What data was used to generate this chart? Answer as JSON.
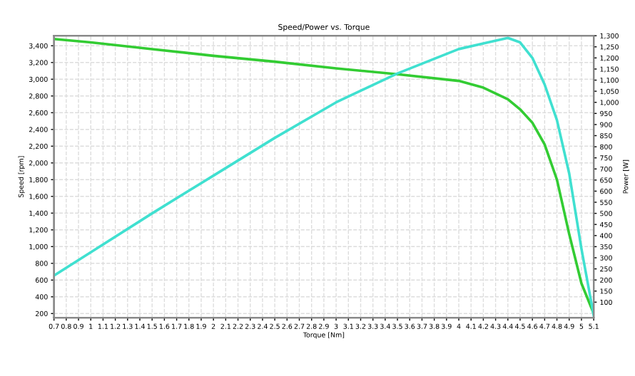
{
  "chart_data": {
    "type": "line",
    "title": "Speed/Power vs. Torque",
    "xlabel": "Torque [Nm]",
    "ylabel": "Speed [rpm]",
    "y2label": "Power [W]",
    "grid": true,
    "legend": false,
    "marker": "none",
    "line_style": "solid",
    "xlim": [
      0.7,
      5.1
    ],
    "xticks": [
      0.7,
      0.8,
      0.9,
      1,
      1.1,
      1.2,
      1.3,
      1.4,
      1.5,
      1.6,
      1.7,
      1.8,
      1.9,
      2,
      2.1,
      2.2,
      2.3,
      2.4,
      2.5,
      2.6,
      2.7,
      2.8,
      2.9,
      3,
      3.1,
      3.2,
      3.3,
      3.4,
      3.5,
      3.6,
      3.7,
      3.8,
      3.9,
      4,
      4.1,
      4.2,
      4.3,
      4.4,
      4.5,
      4.6,
      4.7,
      4.8,
      4.9,
      5,
      5.1
    ],
    "ylim": [
      150,
      3520
    ],
    "yticks": [
      200,
      400,
      600,
      800,
      {
        "value": 1000,
        "label": "1,000"
      },
      {
        "value": 1200,
        "label": "1,200"
      },
      {
        "value": 1400,
        "label": "1,400"
      },
      {
        "value": 1600,
        "label": "1,600"
      },
      {
        "value": 1800,
        "label": "1,800"
      },
      {
        "value": 2000,
        "label": "2,000"
      },
      {
        "value": 2200,
        "label": "2,200"
      },
      {
        "value": 2400,
        "label": "2,400"
      },
      {
        "value": 2600,
        "label": "2,600"
      },
      {
        "value": 2800,
        "label": "2,800"
      },
      {
        "value": 3000,
        "label": "3,000"
      },
      {
        "value": 3200,
        "label": "3,200"
      },
      {
        "value": 3400,
        "label": "3,400"
      }
    ],
    "y2lim": [
      30,
      1300
    ],
    "y2ticks": [
      100,
      150,
      200,
      250,
      300,
      350,
      400,
      450,
      500,
      550,
      600,
      650,
      700,
      750,
      800,
      850,
      900,
      950,
      {
        "value": 1000,
        "label": "1,000"
      },
      {
        "value": 1050,
        "label": "1,050"
      },
      {
        "value": 1100,
        "label": "1,100"
      },
      {
        "value": 1150,
        "label": "1,150"
      },
      {
        "value": 1200,
        "label": "1,200"
      },
      {
        "value": 1250,
        "label": "1,250"
      },
      {
        "value": 1300,
        "label": "1,300"
      }
    ],
    "x": [
      0.7,
      1,
      1.5,
      2,
      2.5,
      3,
      3.5,
      4,
      4.2,
      4.4,
      4.5,
      4.6,
      4.7,
      4.8,
      4.9,
      5,
      5.1
    ],
    "series": [
      {
        "color": "#33cc33",
        "values": [
          3480,
          3440,
          3360,
          3280,
          3210,
          3130,
          3060,
          2980,
          2900,
          2760,
          2640,
          2480,
          2220,
          1800,
          1150,
          560,
          200
        ]
      },
      {
        "color": "#40e0d0",
        "axis": "y2",
        "values": [
          220,
          325,
          500,
          670,
          840,
          1000,
          1130,
          1240,
          1265,
          1290,
          1270,
          1200,
          1080,
          920,
          680,
          340,
          40
        ]
      }
    ]
  }
}
